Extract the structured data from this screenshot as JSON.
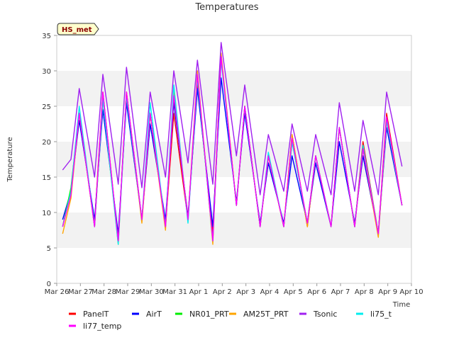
{
  "chart_data": {
    "type": "line",
    "title": "Temperatures",
    "xlabel": "Time",
    "ylabel": "Temperature",
    "badge": "HS_met",
    "ylim": [
      0,
      35
    ],
    "xlim": [
      0,
      15
    ],
    "yticks": [
      0,
      5,
      10,
      15,
      20,
      25,
      30,
      35
    ],
    "xticks": [
      {
        "x": 0,
        "label": "Mar 26"
      },
      {
        "x": 1,
        "label": "Mar 27"
      },
      {
        "x": 2,
        "label": "Mar 28"
      },
      {
        "x": 3,
        "label": "Mar 29"
      },
      {
        "x": 4,
        "label": "Mar 30"
      },
      {
        "x": 5,
        "label": "Mar 31"
      },
      {
        "x": 6,
        "label": "Apr 1"
      },
      {
        "x": 7,
        "label": "Apr 2"
      },
      {
        "x": 8,
        "label": "Apr 3"
      },
      {
        "x": 9,
        "label": "Apr 4"
      },
      {
        "x": 10,
        "label": "Apr 5"
      },
      {
        "x": 11,
        "label": "Apr 6"
      },
      {
        "x": 12,
        "label": "Apr 7"
      },
      {
        "x": 13,
        "label": "Apr 8"
      },
      {
        "x": 14,
        "label": "Apr 9"
      },
      {
        "x": 15,
        "label": "Apr 10"
      }
    ],
    "grid": "horizontal-bands",
    "legend_position": "bottom",
    "x": [
      0.25,
      0.6,
      0.95,
      1.6,
      1.95,
      2.6,
      2.95,
      3.6,
      3.95,
      4.6,
      4.95,
      5.55,
      5.95,
      6.6,
      6.95,
      7.6,
      7.95,
      8.6,
      8.95,
      9.6,
      9.95,
      10.6,
      10.95,
      11.6,
      11.95,
      12.6,
      12.95,
      13.6,
      13.95,
      14.6,
      14.95
    ],
    "series": [
      {
        "name": "PanelT",
        "color": "#ff0000",
        "values": [
          8,
          13,
          24,
          8.5,
          27,
          6,
          27,
          9,
          24,
          8,
          24,
          9,
          28,
          7,
          32,
          11,
          25,
          8,
          18,
          8,
          21,
          8,
          18,
          8,
          22,
          8,
          20,
          7,
          24,
          11,
          null
        ]
      },
      {
        "name": "AirT",
        "color": "#0000ff",
        "values": [
          9,
          13,
          23,
          9,
          24.5,
          7,
          25.5,
          9,
          22.5,
          9,
          25.5,
          9.5,
          27.5,
          8,
          29,
          11.5,
          24,
          8.5,
          17,
          8.5,
          18,
          8.5,
          17,
          8,
          20,
          8.5,
          18,
          7,
          22,
          11,
          null
        ]
      },
      {
        "name": "NR01_PRT",
        "color": "#00ee00",
        "values": [
          8,
          13.5,
          24,
          8,
          26,
          6,
          26.5,
          9,
          24,
          8,
          26.5,
          9,
          29,
          6,
          32,
          11,
          25,
          8,
          18,
          8,
          20,
          8.5,
          18,
          8,
          22,
          8,
          19,
          7,
          23,
          11,
          null
        ]
      },
      {
        "name": "AM25T_PRT",
        "color": "#ffa500",
        "values": [
          7,
          12,
          24,
          8,
          26,
          5.5,
          27,
          8.5,
          24,
          7.5,
          27,
          9,
          30,
          5.5,
          32.5,
          11,
          25,
          8,
          18,
          8,
          21,
          8,
          18,
          8,
          22,
          8,
          19,
          6.5,
          23,
          11,
          null
        ]
      },
      {
        "name": "Tsonic",
        "color": "#a020f0",
        "values": [
          16,
          17.5,
          27.5,
          15,
          29.5,
          14,
          30.5,
          13.5,
          27,
          15,
          30,
          17,
          31.5,
          14,
          34,
          18,
          28,
          12.5,
          21,
          13,
          22.5,
          13,
          21,
          12.5,
          25.5,
          13,
          23,
          12.5,
          27,
          16.5,
          null
        ]
      },
      {
        "name": "li75_t",
        "color": "#00eeee",
        "values": [
          8,
          13,
          25,
          8,
          26,
          5.5,
          26.5,
          9,
          25.5,
          8,
          28,
          8.5,
          29,
          6,
          31.5,
          11,
          25,
          8,
          18.5,
          8,
          20,
          8.5,
          18,
          8,
          22,
          8,
          19.5,
          7,
          23,
          11,
          null
        ]
      },
      {
        "name": "li77_temp",
        "color": "#ff00ff",
        "values": [
          8,
          12.5,
          24,
          8,
          27,
          6,
          27,
          9,
          24,
          8,
          26.5,
          9,
          29.5,
          6,
          32,
          11,
          25,
          8,
          18,
          8,
          20.5,
          8.5,
          18,
          8,
          22,
          8,
          19,
          7,
          23.5,
          11,
          null
        ]
      }
    ]
  }
}
